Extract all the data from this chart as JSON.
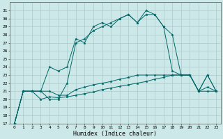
{
  "title": "",
  "xlabel": "Humidex (Indice chaleur)",
  "bg_color": "#cce8e8",
  "grid_color": "#aacccc",
  "line_color": "#006666",
  "xlim": [
    -0.5,
    23.5
  ],
  "ylim": [
    17,
    32
  ],
  "xticks": [
    0,
    1,
    2,
    3,
    4,
    5,
    6,
    7,
    8,
    9,
    10,
    11,
    12,
    13,
    14,
    15,
    16,
    17,
    18,
    19,
    20,
    21,
    22,
    23
  ],
  "yticks": [
    17,
    18,
    19,
    20,
    21,
    22,
    23,
    24,
    25,
    26,
    27,
    28,
    29,
    30,
    31
  ],
  "s1": [
    17,
    21,
    21,
    21,
    20,
    20,
    22,
    27,
    27.5,
    28.5,
    29,
    29.5,
    30,
    30.5,
    29.5,
    31,
    30.5,
    29,
    28,
    23,
    23,
    21,
    23,
    21
  ],
  "s2": [
    17,
    21,
    21,
    21,
    24,
    23.5,
    24,
    27.5,
    27,
    29,
    29.5,
    29,
    30,
    30.5,
    29.5,
    30.5,
    30.5,
    29,
    23.5,
    23,
    23,
    21,
    23,
    21
  ],
  "s3": [
    17,
    21,
    21,
    21,
    21,
    20.5,
    20.5,
    21.2,
    21.5,
    21.8,
    22,
    22.2,
    22.5,
    22.7,
    23,
    23,
    23,
    23,
    23,
    23,
    23,
    21,
    21.5,
    21
  ],
  "s4": [
    17,
    21,
    21,
    20,
    20.3,
    20.2,
    20.3,
    20.5,
    20.7,
    20.9,
    21.2,
    21.4,
    21.6,
    21.8,
    22,
    22.2,
    22.5,
    22.7,
    23,
    23,
    23,
    21,
    21,
    21
  ],
  "xlabel_fontsize": 6,
  "tick_fontsize": 4.5,
  "linewidth": 0.7,
  "markersize": 2.5
}
